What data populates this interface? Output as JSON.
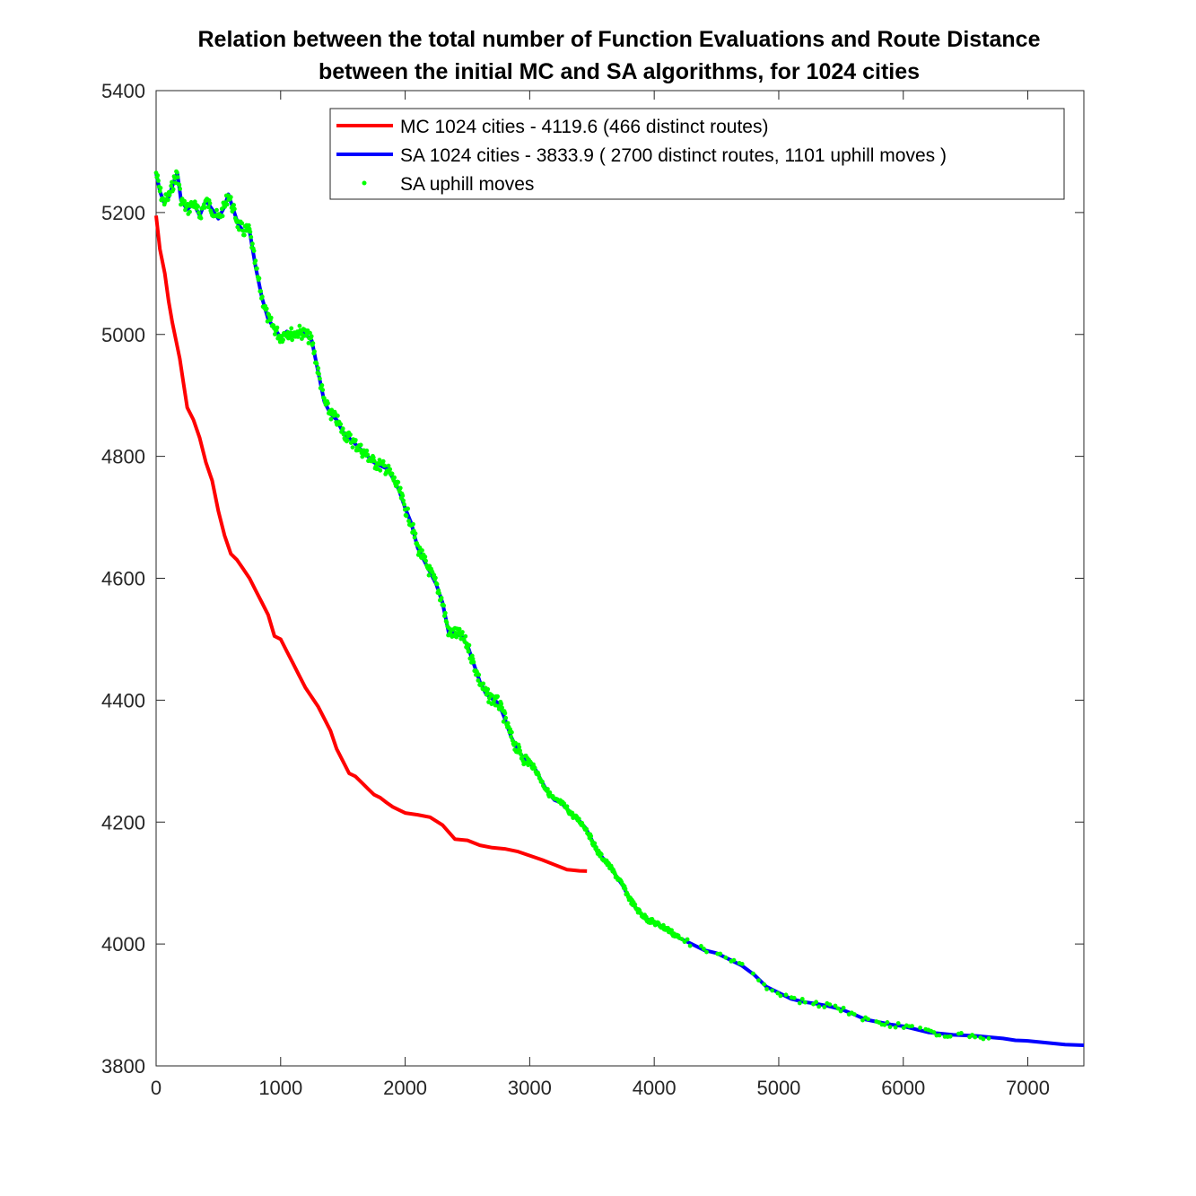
{
  "chart_data": {
    "type": "line",
    "title": [
      "Relation between the total number of Function Evaluations and Route Distance",
      "between the initial MC and SA algorithms, for 1024 cities"
    ],
    "xlabel": "",
    "ylabel": "",
    "xlim": [
      0,
      7450
    ],
    "ylim": [
      3800,
      5400
    ],
    "x_ticks": [
      0,
      1000,
      2000,
      3000,
      4000,
      5000,
      6000,
      7000
    ],
    "y_ticks": [
      3800,
      4000,
      4200,
      4400,
      4600,
      4800,
      5000,
      5200,
      5400
    ],
    "grid": false,
    "legend_position": "top-right",
    "series": [
      {
        "name": "MC 1024 cities - 4119.6 (466 distinct routes)",
        "style": "line",
        "color": "#ff0000",
        "points": [
          [
            0,
            5195
          ],
          [
            30,
            5140
          ],
          [
            70,
            5100
          ],
          [
            100,
            5055
          ],
          [
            130,
            5020
          ],
          [
            160,
            4990
          ],
          [
            190,
            4960
          ],
          [
            220,
            4920
          ],
          [
            250,
            4880
          ],
          [
            300,
            4860
          ],
          [
            350,
            4830
          ],
          [
            400,
            4790
          ],
          [
            450,
            4760
          ],
          [
            500,
            4710
          ],
          [
            550,
            4670
          ],
          [
            600,
            4640
          ],
          [
            650,
            4630
          ],
          [
            700,
            4615
          ],
          [
            750,
            4600
          ],
          [
            800,
            4580
          ],
          [
            850,
            4560
          ],
          [
            900,
            4540
          ],
          [
            950,
            4505
          ],
          [
            1000,
            4500
          ],
          [
            1050,
            4480
          ],
          [
            1100,
            4460
          ],
          [
            1150,
            4440
          ],
          [
            1200,
            4420
          ],
          [
            1250,
            4405
          ],
          [
            1300,
            4390
          ],
          [
            1350,
            4370
          ],
          [
            1400,
            4350
          ],
          [
            1450,
            4320
          ],
          [
            1500,
            4300
          ],
          [
            1550,
            4280
          ],
          [
            1600,
            4275
          ],
          [
            1650,
            4265
          ],
          [
            1700,
            4255
          ],
          [
            1750,
            4245
          ],
          [
            1800,
            4240
          ],
          [
            1850,
            4232
          ],
          [
            1900,
            4225
          ],
          [
            1950,
            4220
          ],
          [
            2000,
            4215
          ],
          [
            2100,
            4212
          ],
          [
            2200,
            4208
          ],
          [
            2300,
            4195
          ],
          [
            2400,
            4172
          ],
          [
            2500,
            4170
          ],
          [
            2600,
            4162
          ],
          [
            2700,
            4158
          ],
          [
            2800,
            4156
          ],
          [
            2900,
            4152
          ],
          [
            3000,
            4145
          ],
          [
            3100,
            4138
          ],
          [
            3200,
            4130
          ],
          [
            3300,
            4122
          ],
          [
            3400,
            4120
          ],
          [
            3460,
            4119.6
          ]
        ]
      },
      {
        "name": "SA 1024 cities - 3833.9 ( 2700 distinct routes, 1101 uphill moves )",
        "style": "line",
        "color": "#0000ff",
        "points": [
          [
            0,
            5265
          ],
          [
            30,
            5235
          ],
          [
            60,
            5218
          ],
          [
            100,
            5225
          ],
          [
            150,
            5255
          ],
          [
            170,
            5265
          ],
          [
            200,
            5220
          ],
          [
            250,
            5205
          ],
          [
            300,
            5215
          ],
          [
            350,
            5195
          ],
          [
            400,
            5220
          ],
          [
            450,
            5205
          ],
          [
            500,
            5190
          ],
          [
            550,
            5210
          ],
          [
            580,
            5230
          ],
          [
            620,
            5205
          ],
          [
            660,
            5180
          ],
          [
            700,
            5170
          ],
          [
            750,
            5170
          ],
          [
            800,
            5110
          ],
          [
            850,
            5060
          ],
          [
            900,
            5025
          ],
          [
            950,
            5010
          ],
          [
            1000,
            4995
          ],
          [
            1050,
            5005
          ],
          [
            1100,
            5000
          ],
          [
            1150,
            5005
          ],
          [
            1200,
            5000
          ],
          [
            1250,
            4990
          ],
          [
            1300,
            4940
          ],
          [
            1350,
            4890
          ],
          [
            1400,
            4870
          ],
          [
            1450,
            4860
          ],
          [
            1500,
            4840
          ],
          [
            1550,
            4830
          ],
          [
            1600,
            4820
          ],
          [
            1650,
            4810
          ],
          [
            1700,
            4800
          ],
          [
            1750,
            4790
          ],
          [
            1800,
            4785
          ],
          [
            1850,
            4780
          ],
          [
            1900,
            4765
          ],
          [
            1950,
            4745
          ],
          [
            2000,
            4715
          ],
          [
            2050,
            4690
          ],
          [
            2100,
            4650
          ],
          [
            2150,
            4630
          ],
          [
            2200,
            4610
          ],
          [
            2250,
            4590
          ],
          [
            2300,
            4560
          ],
          [
            2350,
            4510
          ],
          [
            2400,
            4510
          ],
          [
            2450,
            4505
          ],
          [
            2500,
            4490
          ],
          [
            2550,
            4460
          ],
          [
            2600,
            4430
          ],
          [
            2650,
            4410
          ],
          [
            2700,
            4402
          ],
          [
            2750,
            4395
          ],
          [
            2800,
            4370
          ],
          [
            2850,
            4340
          ],
          [
            2900,
            4320
          ],
          [
            2950,
            4305
          ],
          [
            3000,
            4298
          ],
          [
            3050,
            4285
          ],
          [
            3100,
            4265
          ],
          [
            3150,
            4248
          ],
          [
            3200,
            4236
          ],
          [
            3250,
            4232
          ],
          [
            3300,
            4222
          ],
          [
            3350,
            4210
          ],
          [
            3400,
            4202
          ],
          [
            3450,
            4190
          ],
          [
            3500,
            4170
          ],
          [
            3550,
            4150
          ],
          [
            3600,
            4138
          ],
          [
            3650,
            4125
          ],
          [
            3700,
            4110
          ],
          [
            3750,
            4095
          ],
          [
            3800,
            4075
          ],
          [
            3850,
            4060
          ],
          [
            3900,
            4048
          ],
          [
            3950,
            4040
          ],
          [
            4000,
            4035
          ],
          [
            4100,
            4025
          ],
          [
            4200,
            4010
          ],
          [
            4300,
            4000
          ],
          [
            4400,
            3990
          ],
          [
            4500,
            3985
          ],
          [
            4600,
            3975
          ],
          [
            4700,
            3965
          ],
          [
            4800,
            3950
          ],
          [
            4900,
            3930
          ],
          [
            5000,
            3920
          ],
          [
            5100,
            3910
          ],
          [
            5200,
            3905
          ],
          [
            5300,
            3902
          ],
          [
            5400,
            3898
          ],
          [
            5500,
            3893
          ],
          [
            5600,
            3885
          ],
          [
            5700,
            3876
          ],
          [
            5800,
            3872
          ],
          [
            5900,
            3868
          ],
          [
            6000,
            3865
          ],
          [
            6100,
            3860
          ],
          [
            6200,
            3855
          ],
          [
            6300,
            3853
          ],
          [
            6400,
            3851
          ],
          [
            6500,
            3850
          ],
          [
            6600,
            3849
          ],
          [
            6700,
            3847
          ],
          [
            6800,
            3845
          ],
          [
            6900,
            3842
          ],
          [
            7000,
            3841
          ],
          [
            7100,
            3839
          ],
          [
            7200,
            3837
          ],
          [
            7300,
            3835
          ],
          [
            7450,
            3833.9
          ]
        ]
      },
      {
        "name": "SA uphill moves",
        "style": "markers",
        "color": "#00ff00",
        "x_range": [
          0,
          6700
        ]
      }
    ]
  }
}
